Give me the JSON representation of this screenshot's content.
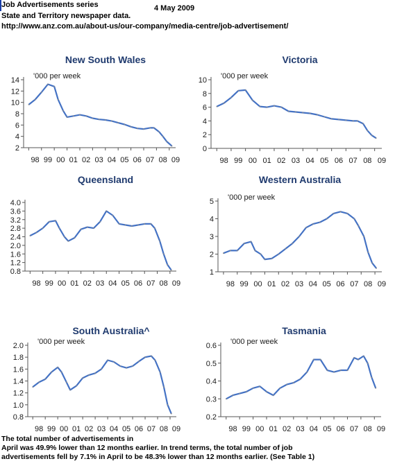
{
  "header": {
    "title": "Job Advertisements series",
    "date": "4 May 2009",
    "subtitle": "State and Territory newspaper data.",
    "url": "http://www.anz.com.au/about-us/our-company/media-centre/job-advertisement/"
  },
  "footer": {
    "line1": "The total number of advertisements in",
    "line2": "April was 49.9% lower than 12 months earlier. In trend terms, the total number of job",
    "line3": "advertisements fell by 7.1% in April to be 48.3% lower than 12 months earlier. (See Table 1)"
  },
  "colors": {
    "trend": "#4472c4",
    "raw": "#8a8a8a",
    "axis": "#555555",
    "title": "#1f3a6e",
    "tick": "#1a1a1a"
  },
  "chart_data": [
    {
      "type": "line",
      "title": "New South Wales",
      "unit_label": "'000 per week",
      "ylim": [
        2,
        14
      ],
      "yticks": [
        2,
        4,
        6,
        8,
        10,
        12,
        14
      ],
      "xticks": [
        "98",
        "99",
        "00",
        "01",
        "02",
        "03",
        "04",
        "05",
        "06",
        "07",
        "08",
        "09"
      ],
      "x": [
        1998.0,
        1998.5,
        1999.0,
        1999.5,
        2000.0,
        2000.3,
        2000.7,
        2001.0,
        2001.5,
        2002.0,
        2002.5,
        2003.0,
        2003.5,
        2004.0,
        2004.5,
        2005.0,
        2005.5,
        2006.0,
        2006.5,
        2007.0,
        2007.5,
        2007.8,
        2008.2,
        2008.5,
        2008.8,
        2009.2
      ],
      "series": [
        {
          "values": [
            9.6,
            10.5,
            11.8,
            13.2,
            12.8,
            10.5,
            8.5,
            7.4,
            7.6,
            7.8,
            7.6,
            7.2,
            7.0,
            6.9,
            6.7,
            6.4,
            6.1,
            5.7,
            5.4,
            5.3,
            5.5,
            5.5,
            4.8,
            4.0,
            3.1,
            2.3
          ]
        }
      ]
    },
    {
      "type": "line",
      "title": "Victoria",
      "unit_label": "'000 per week",
      "ylim": [
        0,
        10
      ],
      "yticks": [
        0,
        2,
        4,
        6,
        8,
        10
      ],
      "xticks": [
        "98",
        "99",
        "00",
        "01",
        "02",
        "03",
        "04",
        "05",
        "06",
        "07",
        "08",
        "09"
      ],
      "x": [
        1998.0,
        1998.5,
        1999.0,
        1999.5,
        2000.0,
        2000.5,
        2001.0,
        2001.5,
        2002.0,
        2002.5,
        2003.0,
        2003.5,
        2004.0,
        2004.5,
        2005.0,
        2005.5,
        2006.0,
        2006.5,
        2007.0,
        2007.5,
        2007.8,
        2008.2,
        2008.5,
        2008.8,
        2009.1
      ],
      "series": [
        {
          "values": [
            6.1,
            6.6,
            7.4,
            8.4,
            8.5,
            7.0,
            6.1,
            6.0,
            6.2,
            6.0,
            5.4,
            5.3,
            5.2,
            5.1,
            4.9,
            4.6,
            4.3,
            4.2,
            4.1,
            4.0,
            4.0,
            3.6,
            2.6,
            1.9,
            1.5
          ]
        }
      ]
    },
    {
      "type": "line",
      "title": "Queensland",
      "unit_label": "",
      "ylim": [
        0.8,
        4.0
      ],
      "yticks": [
        0.8,
        1.2,
        1.6,
        2.0,
        2.4,
        2.8,
        3.2,
        3.6,
        4.0
      ],
      "xticks": [
        "98",
        "99",
        "00",
        "01",
        "02",
        "03",
        "04",
        "05",
        "06",
        "07",
        "08",
        "09"
      ],
      "x": [
        1998.0,
        1998.5,
        1999.0,
        1999.5,
        2000.0,
        2000.3,
        2000.7,
        2001.0,
        2001.5,
        2002.0,
        2002.5,
        2003.0,
        2003.5,
        2004.0,
        2004.5,
        2005.0,
        2005.5,
        2006.0,
        2006.5,
        2007.0,
        2007.5,
        2007.8,
        2008.2,
        2008.5,
        2008.8,
        2009.1
      ],
      "series": [
        {
          "values": [
            2.45,
            2.6,
            2.8,
            3.1,
            3.15,
            2.8,
            2.4,
            2.2,
            2.35,
            2.75,
            2.85,
            2.8,
            3.1,
            3.6,
            3.4,
            3.0,
            2.95,
            2.9,
            2.95,
            3.0,
            3.0,
            2.8,
            2.2,
            1.6,
            1.1,
            0.85
          ]
        }
      ]
    },
    {
      "type": "line",
      "title": "Western Australia",
      "unit_label": "'000 per week",
      "ylim": [
        1,
        5
      ],
      "yticks": [
        1,
        2,
        3,
        4,
        5
      ],
      "xticks": [
        "98",
        "99",
        "00",
        "01",
        "02",
        "03",
        "04",
        "05",
        "06",
        "07",
        "08",
        "09"
      ],
      "x": [
        1998.0,
        1998.5,
        1999.0,
        1999.5,
        2000.0,
        2000.3,
        2000.7,
        2001.0,
        2001.5,
        2002.0,
        2002.5,
        2003.0,
        2003.5,
        2004.0,
        2004.5,
        2005.0,
        2005.5,
        2006.0,
        2006.5,
        2007.0,
        2007.5,
        2007.8,
        2008.2,
        2008.5,
        2008.8,
        2009.1
      ],
      "series": [
        {
          "values": [
            2.05,
            2.2,
            2.2,
            2.6,
            2.7,
            2.2,
            2.0,
            1.7,
            1.75,
            2.0,
            2.3,
            2.6,
            3.0,
            3.5,
            3.7,
            3.8,
            4.0,
            4.3,
            4.4,
            4.3,
            4.0,
            3.6,
            3.0,
            2.1,
            1.5,
            1.2
          ]
        }
      ]
    },
    {
      "type": "line",
      "title": "South Australia^",
      "unit_label": "'000 per week",
      "ylim": [
        0.8,
        2.0
      ],
      "yticks": [
        0.8,
        1.0,
        1.2,
        1.4,
        1.6,
        1.8,
        2.0
      ],
      "xticks": [
        "98",
        "99",
        "00",
        "01",
        "02",
        "03",
        "04",
        "05",
        "06",
        "07",
        "08",
        "09"
      ],
      "x": [
        1998.0,
        1998.5,
        1999.0,
        1999.5,
        2000.0,
        2000.3,
        2000.7,
        2001.0,
        2001.5,
        2002.0,
        2002.5,
        2003.0,
        2003.5,
        2004.0,
        2004.5,
        2005.0,
        2005.5,
        2006.0,
        2006.5,
        2007.0,
        2007.5,
        2007.8,
        2008.2,
        2008.5,
        2008.8,
        2009.1
      ],
      "series": [
        {
          "values": [
            1.3,
            1.38,
            1.43,
            1.55,
            1.63,
            1.55,
            1.38,
            1.25,
            1.32,
            1.45,
            1.5,
            1.53,
            1.6,
            1.75,
            1.72,
            1.65,
            1.62,
            1.65,
            1.73,
            1.8,
            1.82,
            1.75,
            1.55,
            1.3,
            1.0,
            0.85
          ]
        }
      ]
    },
    {
      "type": "line",
      "title": "Tasmania",
      "unit_label": "'000 per week",
      "ylim": [
        0.2,
        0.6
      ],
      "yticks": [
        0.2,
        0.3,
        0.4,
        0.5,
        0.6
      ],
      "xticks": [
        "98",
        "99",
        "00",
        "01",
        "02",
        "03",
        "04",
        "05",
        "06",
        "07",
        "08",
        "09"
      ],
      "x": [
        1998.0,
        1998.5,
        1999.0,
        1999.5,
        2000.0,
        2000.5,
        2001.0,
        2001.5,
        2002.0,
        2002.5,
        2003.0,
        2003.5,
        2004.0,
        2004.5,
        2005.0,
        2005.5,
        2006.0,
        2006.5,
        2007.0,
        2007.5,
        2007.8,
        2008.2,
        2008.5,
        2008.8,
        2009.1
      ],
      "series": [
        {
          "values": [
            0.3,
            0.32,
            0.33,
            0.34,
            0.36,
            0.37,
            0.34,
            0.32,
            0.36,
            0.38,
            0.39,
            0.41,
            0.45,
            0.52,
            0.52,
            0.46,
            0.45,
            0.46,
            0.46,
            0.53,
            0.52,
            0.54,
            0.5,
            0.42,
            0.36
          ]
        }
      ]
    }
  ]
}
